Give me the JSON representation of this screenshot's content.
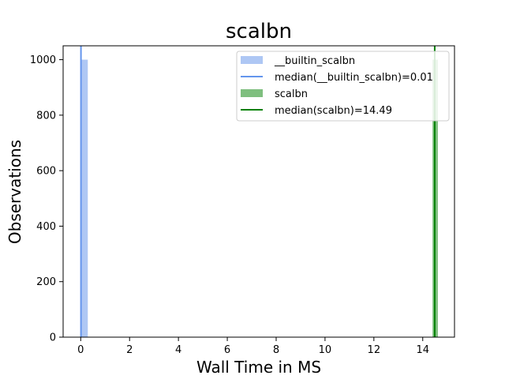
{
  "chart_data": {
    "type": "bar",
    "title": "scalbn",
    "xlabel": "Wall Time in MS",
    "ylabel": "Observations",
    "xlim": [
      -0.72,
      15.3
    ],
    "ylim": [
      0,
      1050
    ],
    "xticks": [
      0,
      2,
      4,
      6,
      8,
      10,
      12,
      14
    ],
    "yticks": [
      0,
      200,
      400,
      600,
      800,
      1000
    ],
    "grid": false,
    "legend_position": "top-right",
    "series": [
      {
        "name": "__builtin_scalbn",
        "kind": "histogram",
        "color": "#aec7f4",
        "bins": [
          {
            "x0": 0.0,
            "x1": 0.29,
            "count": 1000
          }
        ],
        "median": 0.01,
        "median_label": "median(__builtin_scalbn)=0.01",
        "median_color": "#6495ed"
      },
      {
        "name": "scalbn",
        "kind": "histogram",
        "color": "#7fbf7f",
        "bins": [
          {
            "x0": 14.4,
            "x1": 14.62,
            "count": 1000
          }
        ],
        "median": 14.49,
        "median_label": "median(scalbn)=14.49",
        "median_color": "#008000"
      }
    ]
  }
}
